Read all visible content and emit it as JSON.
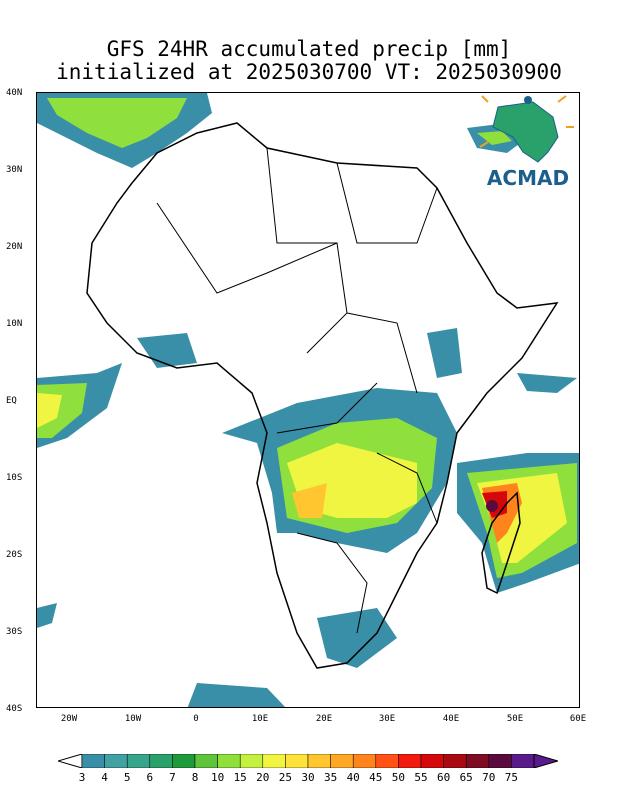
{
  "title": {
    "line1": "GFS 24HR accumulated precip [mm]",
    "line2": "initialized at 2025030700 VT: 2025030900"
  },
  "logo": {
    "text": "ACMAD",
    "icon": "acmad-africa-logo-icon"
  },
  "axes": {
    "y_ticks": [
      "40N",
      "30N",
      "20N",
      "10N",
      "EQ",
      "10S",
      "20S",
      "30S",
      "40S"
    ],
    "x_ticks": [
      "20W",
      "10W",
      "0",
      "10E",
      "20E",
      "30E",
      "40E",
      "50E",
      "60E"
    ]
  },
  "colorbar": {
    "labels": [
      "3",
      "4",
      "5",
      "6",
      "7",
      "8",
      "10",
      "15",
      "20",
      "25",
      "30",
      "35",
      "40",
      "45",
      "50",
      "55",
      "60",
      "65",
      "70",
      "75"
    ],
    "colors": [
      "#3a8fa8",
      "#41a1a3",
      "#37a58a",
      "#2aa06a",
      "#1f9a3a",
      "#5fc43a",
      "#8fe03c",
      "#c4f040",
      "#f0f542",
      "#ffe23a",
      "#ffc630",
      "#ffa826",
      "#ff841c",
      "#ff5214",
      "#f21a0e",
      "#d4080a",
      "#a80a12",
      "#7e0c22",
      "#5a0a3c",
      "#5a1a8c"
    ]
  }
}
